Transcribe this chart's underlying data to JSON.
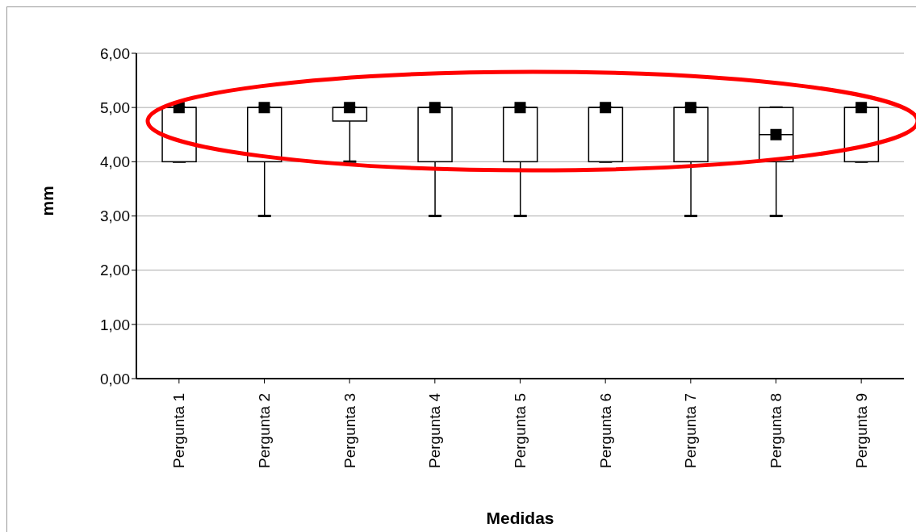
{
  "chart_data": {
    "type": "box",
    "xlabel": "Medidas",
    "ylabel": "mm",
    "categories": [
      "Pergunta 1",
      "Pergunta 2",
      "Pergunta 3",
      "Pergunta 4",
      "Pergunta 5",
      "Pergunta 6",
      "Pergunta 7",
      "Pergunta 8",
      "Pergunta 9"
    ],
    "boxes": [
      {
        "low": 4,
        "q1": 4,
        "median": 5,
        "q3": 5,
        "high": 5
      },
      {
        "low": 3,
        "q1": 4,
        "median": 5,
        "q3": 5,
        "high": 5
      },
      {
        "low": 4,
        "q1": 4.75,
        "median": 5,
        "q3": 5,
        "high": 5
      },
      {
        "low": 3,
        "q1": 4,
        "median": 5,
        "q3": 5,
        "high": 5
      },
      {
        "low": 3,
        "q1": 4,
        "median": 5,
        "q3": 5,
        "high": 5
      },
      {
        "low": 4,
        "q1": 4,
        "median": 5,
        "q3": 5,
        "high": 5
      },
      {
        "low": 3,
        "q1": 4,
        "median": 5,
        "q3": 5,
        "high": 5
      },
      {
        "low": 3,
        "q1": 4,
        "median": 4.5,
        "q3": 5,
        "high": 5
      },
      {
        "low": 4,
        "q1": 4,
        "median": 5,
        "q3": 5,
        "high": 5
      }
    ],
    "ylim": [
      0,
      6
    ],
    "yticks": [
      {
        "value": 0,
        "label": "0,00"
      },
      {
        "value": 1,
        "label": "1,00"
      },
      {
        "value": 2,
        "label": "2,00"
      },
      {
        "value": 3,
        "label": "3,00"
      },
      {
        "value": 4,
        "label": "4,00"
      },
      {
        "value": 5,
        "label": "5,00"
      },
      {
        "value": 6,
        "label": "6,00"
      }
    ],
    "series": [
      {
        "type": "scatter",
        "color": "#000000",
        "marker": "square",
        "x": [
          "Pergunta 1",
          "Pergunta 2",
          "Pergunta 3",
          "Pergunta 4",
          "Pergunta 5",
          "Pergunta 6",
          "Pergunta 7",
          "Pergunta 8",
          "Pergunta 9"
        ],
        "values": [
          5,
          5,
          5,
          5,
          5,
          5,
          5,
          4.5,
          5
        ]
      }
    ],
    "grid": "y"
  }
}
